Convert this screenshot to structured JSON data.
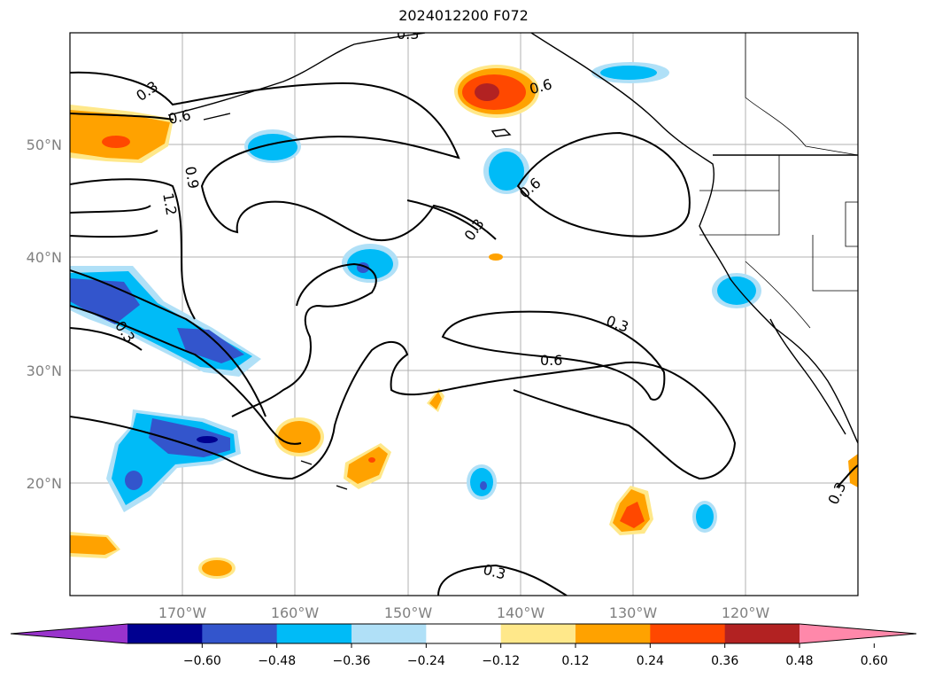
{
  "title": "2024012200 F072",
  "map": {
    "lon_labels": [
      "170°W",
      "160°W",
      "150°W",
      "140°W",
      "130°W",
      "120°W"
    ],
    "lat_labels": [
      "50°N",
      "40°N",
      "30°N",
      "20°N"
    ],
    "contour_labels": [
      "0.3",
      "0.6",
      "0.9",
      "1.2",
      "0.6",
      "0.3",
      "0.6",
      "0.3",
      "0.3",
      "0.6",
      "0.3",
      "0.3",
      "0.3"
    ]
  },
  "colorbar": {
    "ticks": [
      "−0.60",
      "−0.48",
      "−0.36",
      "−0.24",
      "−0.12",
      "0.12",
      "0.24",
      "0.36",
      "0.48",
      "0.60"
    ],
    "colors": [
      "#9933cc",
      "#000090",
      "#3355cc",
      "#00bbf7",
      "#b0e0f7",
      "#ffffff",
      "#ffe88a",
      "#ffa200",
      "#ff4800",
      "#b22222",
      "#ff88aa"
    ]
  }
}
